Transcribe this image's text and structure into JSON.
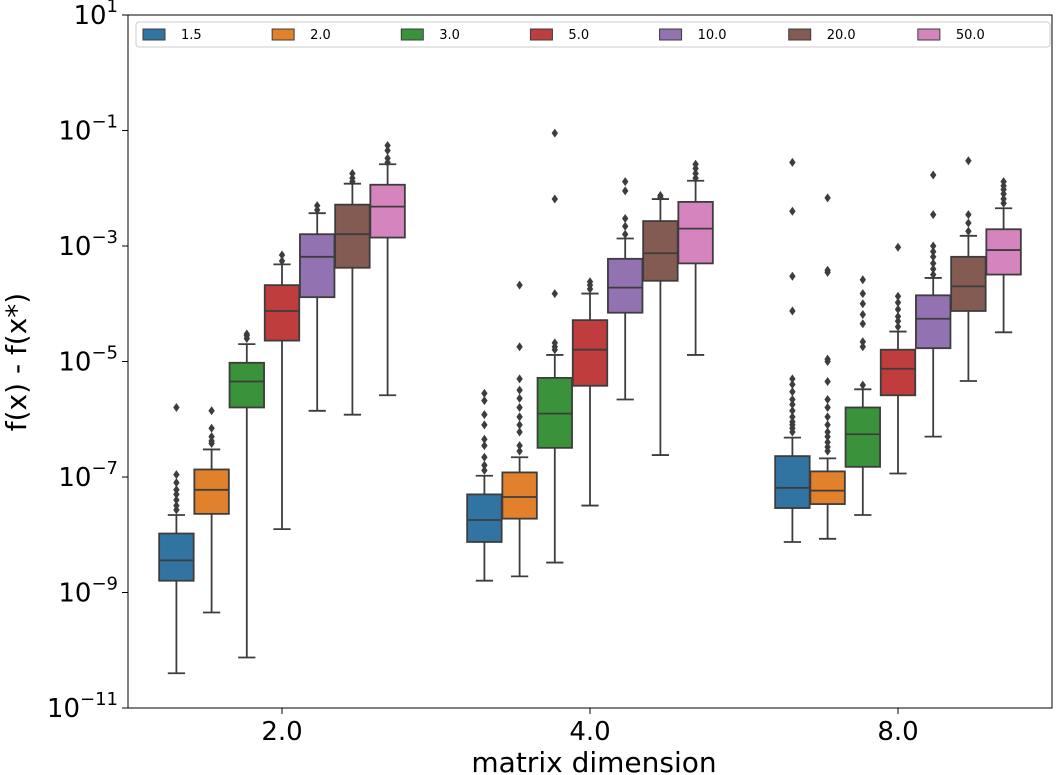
{
  "chart_data": {
    "type": "box",
    "xlabel": "matrix dimension",
    "ylabel": "f(x) - f(x*)",
    "y_scale": "log",
    "ylim": [
      1e-11,
      10
    ],
    "y_ticks": [
      {
        "value": 1e-11,
        "base": "10",
        "exp": "−11"
      },
      {
        "value": 1e-09,
        "base": "10",
        "exp": "−9"
      },
      {
        "value": 1e-07,
        "base": "10",
        "exp": "−7"
      },
      {
        "value": 1e-05,
        "base": "10",
        "exp": "−5"
      },
      {
        "value": 0.001,
        "base": "10",
        "exp": "−3"
      },
      {
        "value": 0.1,
        "base": "10",
        "exp": "−1"
      },
      {
        "value": 10,
        "base": "10",
        "exp": "1"
      }
    ],
    "categories": [
      "2.0",
      "4.0",
      "8.0"
    ],
    "legend": {
      "placement": "top",
      "entries": [
        "1.5",
        "2.0",
        "3.0",
        "5.0",
        "10.0",
        "20.0",
        "50.0"
      ]
    },
    "series": [
      {
        "name": "1.5",
        "color": "#3274a1",
        "boxes": [
          {
            "whislo": 4e-11,
            "q1": 1.6e-09,
            "median": 3.6e-09,
            "q3": 1.05e-08,
            "whishi": 2.2e-08,
            "fliers": [
              2.7e-08,
              3.2e-08,
              4e-08,
              5e-08,
              6e-08,
              8e-08,
              1.1e-07,
              1.6e-06
            ]
          },
          {
            "whislo": 1.6e-09,
            "q1": 7.5e-09,
            "median": 1.8e-08,
            "q3": 5e-08,
            "whishi": 1.05e-07,
            "fliers": [
              1.3e-07,
              1.6e-07,
              2.2e-07,
              3.5e-07,
              4.5e-07,
              8e-07,
              1.2e-06,
              2.1e-06,
              2.8e-06
            ]
          },
          {
            "whislo": 7.5e-09,
            "q1": 2.9e-08,
            "median": 6.5e-08,
            "q3": 2.3e-07,
            "whishi": 4.8e-07,
            "fliers": [
              6e-07,
              7e-07,
              8e-07,
              9e-07,
              1.1e-06,
              1.4e-06,
              1.8e-06,
              2.2e-06,
              3e-06,
              4e-06,
              5e-06,
              7.5e-05,
              0.0003,
              0.004,
              0.028
            ]
          }
        ]
      },
      {
        "name": "2.0",
        "color": "#e1812c",
        "boxes": [
          {
            "whislo": 4.5e-10,
            "q1": 2.3e-08,
            "median": 6e-08,
            "q3": 1.35e-07,
            "whishi": 3e-07,
            "fliers": [
              3.8e-07,
              4.2e-07,
              5e-07,
              7e-07,
              1.4e-06
            ]
          },
          {
            "whislo": 1.9e-09,
            "q1": 1.9e-08,
            "median": 4.5e-08,
            "q3": 1.2e-07,
            "whishi": 2.2e-07,
            "fliers": [
              2.8e-07,
              3.5e-07,
              6e-07,
              8e-07,
              1.1e-06,
              1.6e-06,
              2.3e-06,
              3.2e-06,
              5e-06,
              1.8e-05,
              0.00021
            ]
          },
          {
            "whislo": 8.5e-09,
            "q1": 3.4e-08,
            "median": 5.8e-08,
            "q3": 1.25e-07,
            "whishi": 2.1e-07,
            "fliers": [
              2.8e-07,
              3.3e-07,
              4e-07,
              5e-07,
              6e-07,
              8e-07,
              1.1e-06,
              1.6e-06,
              2.2e-06,
              4.5e-06,
              1e-05,
              1.1e-05,
              0.00035,
              0.00038,
              0.0068
            ]
          }
        ]
      },
      {
        "name": "3.0",
        "color": "#3a923a",
        "boxes": [
          {
            "whislo": 7.5e-11,
            "q1": 1.6e-06,
            "median": 4.5e-06,
            "q3": 9.5e-06,
            "whishi": 2e-05,
            "fliers": [
              2.5e-05,
              2.8e-05,
              3e-05
            ]
          },
          {
            "whislo": 3.3e-09,
            "q1": 3.2e-07,
            "median": 1.25e-06,
            "q3": 5.2e-06,
            "whishi": 1.3e-05,
            "fliers": [
              1.6e-05,
              1.8e-05,
              2.1e-05,
              0.00015,
              0.0065,
              0.09
            ]
          },
          {
            "whislo": 2.2e-08,
            "q1": 1.5e-07,
            "median": 5.5e-07,
            "q3": 1.6e-06,
            "whishi": 3.3e-06,
            "fliers": [
              3.9e-06,
              1.8e-05,
              2.2e-05,
              4.5e-05,
              6.5e-05,
              0.0001,
              0.00015,
              0.00026
            ]
          }
        ]
      },
      {
        "name": "5.0",
        "color": "#c03d3e",
        "boxes": [
          {
            "whislo": 1.25e-08,
            "q1": 2.3e-05,
            "median": 7.5e-05,
            "q3": 0.00021,
            "whishi": 0.00048,
            "fliers": [
              0.00055,
              0.0007
            ]
          },
          {
            "whislo": 3.2e-08,
            "q1": 3.8e-06,
            "median": 1.6e-05,
            "q3": 5.2e-05,
            "whishi": 0.00015,
            "fliers": [
              0.00018,
              0.00021,
              0.00024
            ]
          },
          {
            "whislo": 1.15e-07,
            "q1": 2.6e-06,
            "median": 7.5e-06,
            "q3": 1.6e-05,
            "whishi": 3.3e-05,
            "fliers": [
              4e-05,
              5e-05,
              6e-05,
              8e-05,
              0.000105,
              0.000135,
              0.00095
            ]
          }
        ]
      },
      {
        "name": "10.0",
        "color": "#9372b2",
        "boxes": [
          {
            "whislo": 1.4e-06,
            "q1": 0.00013,
            "median": 0.00065,
            "q3": 0.0016,
            "whishi": 0.0037,
            "fliers": [
              0.0042,
              0.005
            ]
          },
          {
            "whislo": 2.2e-06,
            "q1": 7e-05,
            "median": 0.00019,
            "q3": 0.0006,
            "whishi": 0.00135,
            "fliers": [
              0.0016,
              0.0022,
              0.003,
              0.009,
              0.013
            ]
          },
          {
            "whislo": 5e-07,
            "q1": 1.7e-05,
            "median": 5.5e-05,
            "q3": 0.00014,
            "whishi": 0.00028,
            "fliers": [
              0.00032,
              0.0004,
              0.0005,
              0.00065,
              0.0008,
              0.001,
              0.0035,
              0.017
            ]
          }
        ]
      },
      {
        "name": "20.0",
        "color": "#845b53",
        "boxes": [
          {
            "whislo": 1.2e-06,
            "q1": 0.00042,
            "median": 0.0016,
            "q3": 0.0052,
            "whishi": 0.012,
            "fliers": [
              0.013,
              0.015,
              0.018
            ]
          },
          {
            "whislo": 2.4e-07,
            "q1": 0.00025,
            "median": 0.00075,
            "q3": 0.0027,
            "whishi": 0.0065,
            "fliers": [
              0.007,
              0.0075
            ]
          },
          {
            "whislo": 4.6e-06,
            "q1": 7.5e-05,
            "median": 0.0002,
            "q3": 0.00065,
            "whishi": 0.0015,
            "fliers": [
              0.0018,
              0.0025,
              0.0035,
              0.03
            ]
          }
        ]
      },
      {
        "name": "50.0",
        "color": "#d684bd",
        "boxes": [
          {
            "whislo": 2.6e-06,
            "q1": 0.0014,
            "median": 0.0048,
            "q3": 0.0115,
            "whishi": 0.026,
            "fliers": [
              0.028,
              0.033,
              0.045,
              0.055
            ]
          },
          {
            "whislo": 1.3e-05,
            "q1": 0.0005,
            "median": 0.002,
            "q3": 0.0058,
            "whishi": 0.0135,
            "fliers": [
              0.015,
              0.018,
              0.022,
              0.026
            ]
          },
          {
            "whislo": 3.2e-05,
            "q1": 0.00032,
            "median": 0.00085,
            "q3": 0.00195,
            "whishi": 0.0045,
            "fliers": [
              0.0055,
              0.0065,
              0.008,
              0.0095,
              0.011,
              0.013
            ]
          }
        ]
      }
    ]
  }
}
